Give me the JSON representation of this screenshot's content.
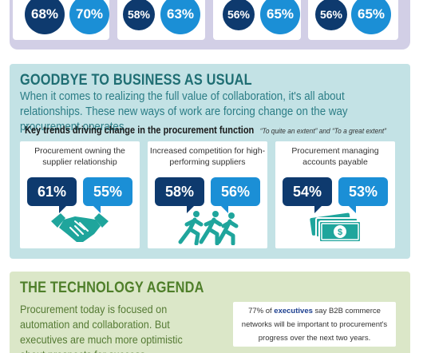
{
  "top_section": {
    "cards": [
      {
        "values": [
          "68%",
          "70%"
        ]
      },
      {
        "values": [
          "58%",
          "63%"
        ]
      },
      {
        "values": [
          "56%",
          "65%"
        ]
      },
      {
        "values": [
          "56%",
          "65%"
        ]
      }
    ]
  },
  "goodbye": {
    "title": "GOODBYE TO BUSINESS AS USUAL",
    "body": "When it comes to realizing the full value of collaboration, it's all about relationships. These new ways of work are forcing change on the way procurement operates.",
    "trends_heading": "Key trends driving change in the procurement function",
    "trends_note": "“To quite an extent” and “To a great extent”",
    "cards": [
      {
        "title": "Procurement owning the supplier relationship",
        "dark_value": "61%",
        "light_value": "55%",
        "icon": "handshake-icon"
      },
      {
        "title": "Increased competition for high-performing suppliers",
        "dark_value": "58%",
        "light_value": "56%",
        "icon": "runners-icon"
      },
      {
        "title": "Procurement managing accounts payable",
        "dark_value": "54%",
        "light_value": "53%",
        "icon": "money-icon"
      }
    ]
  },
  "tech": {
    "title": "THE TECHNOLOGY AGENDA",
    "body": "Procurement today is focused on automation and collaboration. But executives are much more optimistic about prospects for success.",
    "quote_pre": "77% of",
    "quote_emphasis": "executives",
    "quote_post": "say B2B commerce networks will be important to procurement's progress over the next two years."
  },
  "colors": {
    "dark_blue": "#0e3a6e",
    "light_blue": "#1b8fd6",
    "teal_section": "#c3e2e5",
    "green_section": "#dbe7c8",
    "icon_teal": "#1fa59c"
  }
}
